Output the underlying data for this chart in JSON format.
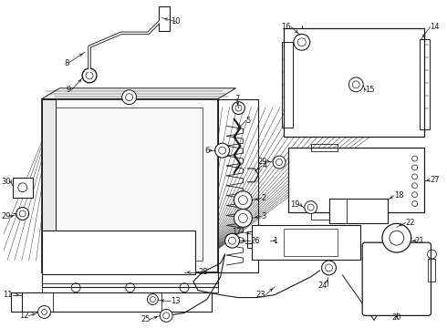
{
  "bg": "#ffffff",
  "lc": "#1a1a1a",
  "fig_w": 4.9,
  "fig_h": 3.6,
  "dpi": 100,
  "font_size": 6.0
}
